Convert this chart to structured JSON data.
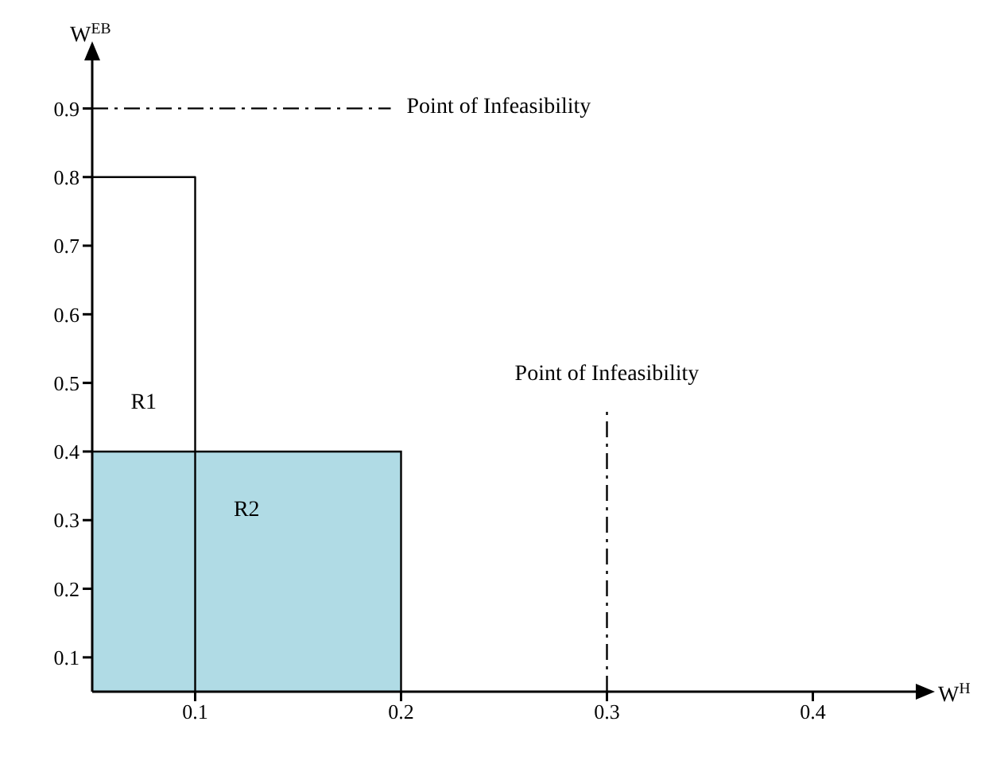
{
  "chart_data": {
    "type": "line",
    "xlabel": "W$^{H}$",
    "ylabel": "W$^{EB}$",
    "xlim": [
      0.05,
      0.45
    ],
    "ylim": [
      0.05,
      0.97
    ],
    "xticks": [
      0.1,
      0.2,
      0.3,
      0.4
    ],
    "yticks": [
      0.1,
      0.2,
      0.3,
      0.4,
      0.5,
      0.6,
      0.7,
      0.8,
      0.9
    ],
    "grid": false,
    "legend": false,
    "marker": "none",
    "series": [
      {
        "type": "area",
        "name": "R2",
        "color": "#b0dbe5",
        "x": [
          0.05,
          0.2,
          0.2
        ],
        "values": [
          0.4,
          0.4,
          0.05
        ]
      },
      {
        "name": "R1",
        "color": "#000000",
        "x": [
          0.05,
          0.1,
          0.1
        ],
        "values": [
          0.8,
          0.8,
          0.05
        ]
      },
      {
        "name": "Point of Infeasibility",
        "color": "#000000",
        "line_style": "dashed",
        "x": [
          0.05,
          0.195
        ],
        "values": [
          0.9,
          0.9
        ]
      },
      {
        "name": "Point of Infeasibility",
        "color": "#000000",
        "line_style": "dashed",
        "x": [
          0.3,
          0.3
        ],
        "values": [
          0.05,
          0.46
        ]
      }
    ]
  }
}
